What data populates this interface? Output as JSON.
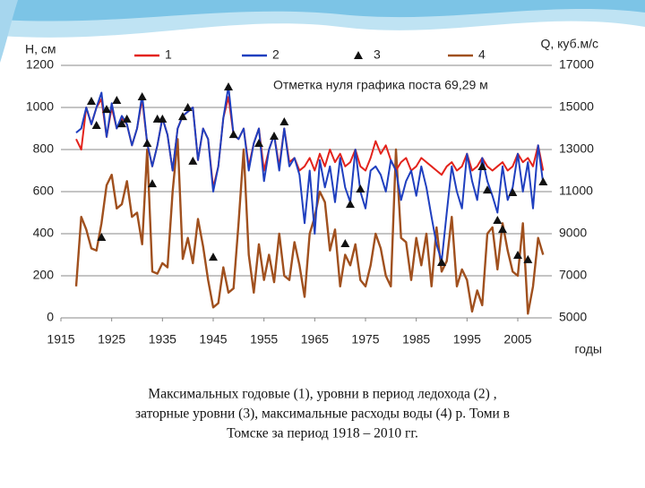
{
  "chart_data": {
    "type": "line",
    "y_label": "H, см",
    "y2_label": "Q, куб.м/с",
    "x_label": "годы",
    "annotation": "Отметка нуля графика поста 69,29 м",
    "caption": [
      "Максимальных годовые (1), уровни в период ледохода (2) ,",
      "заторные уровни (3), максимальные расходы воды (4) р. Томи в",
      "Томске  за период 1918 – 2010 гг."
    ],
    "xlim": [
      1915,
      2011
    ],
    "xticks": [
      1915,
      1925,
      1935,
      1945,
      1955,
      1965,
      1975,
      1985,
      1995,
      2005
    ],
    "ylim": [
      0,
      1200
    ],
    "yticks": [
      0,
      200,
      400,
      600,
      800,
      1000,
      1200
    ],
    "y2lim": [
      5000,
      17000
    ],
    "y2ticks": [
      5000,
      7000,
      9000,
      11000,
      13000,
      15000,
      17000
    ],
    "grid": true,
    "x": [
      1918,
      1919,
      1920,
      1921,
      1922,
      1923,
      1924,
      1925,
      1926,
      1927,
      1928,
      1929,
      1930,
      1931,
      1932,
      1933,
      1934,
      1935,
      1936,
      1937,
      1938,
      1939,
      1940,
      1941,
      1942,
      1943,
      1944,
      1945,
      1946,
      1947,
      1948,
      1949,
      1950,
      1951,
      1952,
      1953,
      1954,
      1955,
      1956,
      1957,
      1958,
      1959,
      1960,
      1961,
      1962,
      1963,
      1964,
      1965,
      1966,
      1967,
      1968,
      1969,
      1970,
      1971,
      1972,
      1973,
      1974,
      1975,
      1976,
      1977,
      1978,
      1979,
      1980,
      1981,
      1982,
      1983,
      1984,
      1985,
      1986,
      1987,
      1988,
      1989,
      1990,
      1991,
      1992,
      1993,
      1994,
      1995,
      1996,
      1997,
      1998,
      1999,
      2000,
      2001,
      2002,
      2003,
      2004,
      2005,
      2006,
      2007,
      2008,
      2009,
      2010
    ],
    "series": [
      {
        "name": "1",
        "color": "#e3231c",
        "style": "line",
        "values": [
          850,
          800,
          1000,
          920,
          1000,
          1040,
          860,
          1000,
          900,
          950,
          920,
          820,
          900,
          1040,
          830,
          720,
          820,
          950,
          870,
          700,
          900,
          960,
          980,
          1000,
          750,
          900,
          850,
          620,
          720,
          950,
          1050,
          870,
          850,
          900,
          720,
          830,
          900,
          700,
          800,
          870,
          720,
          900,
          740,
          760,
          700,
          720,
          760,
          700,
          780,
          720,
          800,
          740,
          780,
          720,
          740,
          800,
          720,
          700,
          760,
          840,
          780,
          820,
          750,
          700,
          740,
          760,
          700,
          720,
          760,
          740,
          720,
          700,
          680,
          720,
          740,
          700,
          720,
          780,
          700,
          720,
          760,
          720,
          700,
          720,
          740,
          700,
          720,
          780,
          740,
          760,
          720,
          820,
          700
        ]
      },
      {
        "name": "2",
        "color": "#1f3fbf",
        "style": "line",
        "values": [
          880,
          900,
          1000,
          920,
          1000,
          1070,
          860,
          1020,
          900,
          960,
          920,
          820,
          900,
          1060,
          830,
          720,
          820,
          950,
          870,
          700,
          900,
          960,
          980,
          1000,
          750,
          900,
          850,
          600,
          720,
          950,
          1100,
          870,
          850,
          900,
          700,
          830,
          900,
          650,
          800,
          870,
          700,
          900,
          720,
          760,
          680,
          450,
          700,
          400,
          750,
          620,
          720,
          550,
          760,
          620,
          550,
          800,
          600,
          520,
          700,
          720,
          680,
          600,
          750,
          700,
          560,
          650,
          700,
          580,
          720,
          620,
          480,
          350,
          270,
          500,
          720,
          600,
          520,
          780,
          650,
          560,
          760,
          650,
          580,
          500,
          720,
          560,
          620,
          780,
          600,
          740,
          520,
          820,
          640
        ]
      },
      {
        "name": "3",
        "color": "#111111",
        "style": "marker",
        "x": [
          1921,
          1922,
          1923,
          1924,
          1926,
          1927,
          1928,
          1931,
          1932,
          1933,
          1934,
          1935,
          1939,
          1940,
          1941,
          1945,
          1948,
          1949,
          1954,
          1957,
          1959,
          1971,
          1972,
          1974,
          1990,
          1998,
          1999,
          2001,
          2002,
          2004,
          2005,
          2007,
          2010
        ],
        "values": [
          1030,
          915,
          383,
          991,
          1034,
          923,
          945,
          1051,
          830,
          638,
          945,
          945,
          957,
          1000,
          745,
          289,
          1098,
          872,
          830,
          864,
          932,
          353,
          540,
          613,
          264,
          719,
          608,
          464,
          421,
          596,
          298,
          277,
          647
        ]
      },
      {
        "name": "4",
        "color": "#a0501e",
        "style": "line",
        "axis": "y2",
        "values": [
          6500,
          9800,
          9200,
          8300,
          8200,
          9500,
          11300,
          11800,
          10200,
          10400,
          11500,
          9800,
          10000,
          8500,
          13000,
          7200,
          7100,
          7600,
          7400,
          11000,
          13500,
          7800,
          8800,
          7600,
          9700,
          8400,
          6800,
          5500,
          5700,
          7400,
          6200,
          6400,
          9500,
          13000,
          8000,
          6200,
          8500,
          6800,
          8000,
          6700,
          9000,
          7000,
          6800,
          8600,
          7500,
          6000,
          9000,
          9800,
          11000,
          10500,
          8200,
          9200,
          6500,
          8000,
          7500,
          8500,
          6800,
          6500,
          7500,
          9000,
          8300,
          7000,
          6500,
          13000,
          8800,
          8600,
          6800,
          8800,
          7500,
          9000,
          6500,
          9300,
          7200,
          7700,
          9800,
          6500,
          7300,
          6800,
          5300,
          6300,
          5600,
          9000,
          9300,
          7300,
          9500,
          8200,
          7200,
          7000,
          9500,
          5200,
          6500,
          8800,
          8000
        ]
      }
    ]
  }
}
